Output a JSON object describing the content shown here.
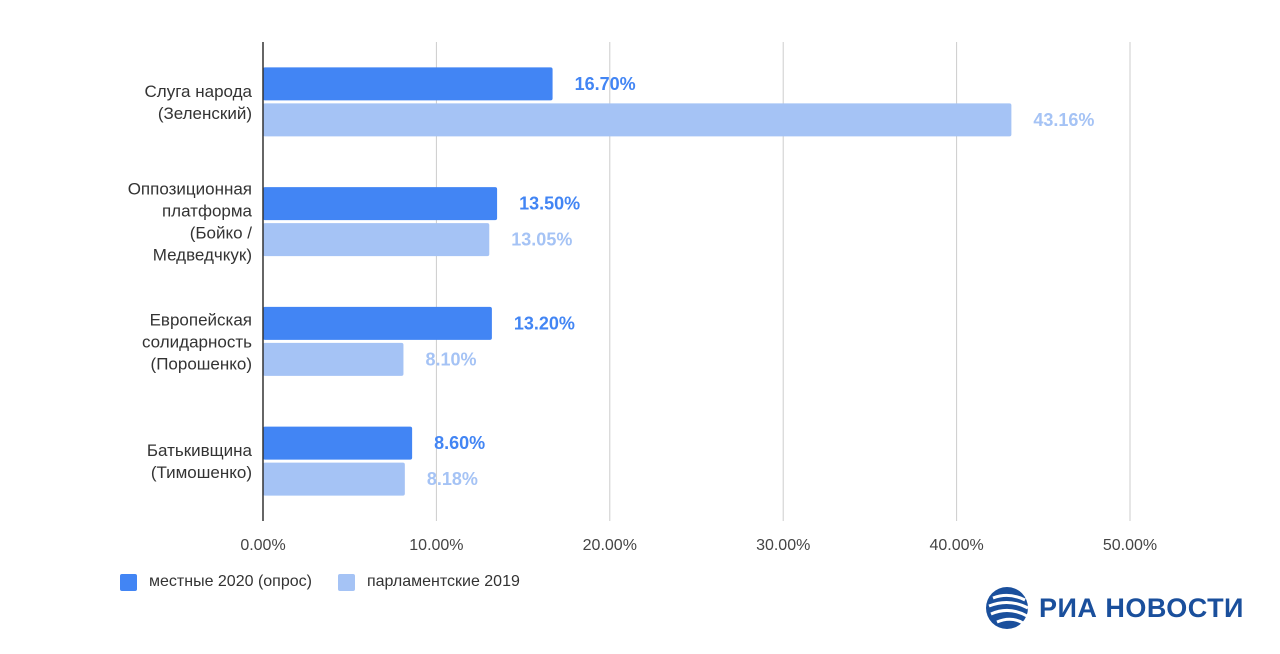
{
  "chart_data": {
    "type": "bar",
    "orientation": "horizontal",
    "categories": [
      [
        "Слуга народа",
        "(Зеленский)"
      ],
      [
        "Оппозиционная",
        "платформа",
        "(Бойко /",
        "Медведчкук)"
      ],
      [
        "Европейская",
        "солидарность",
        "(Порошенко)"
      ],
      [
        "Батькивщина",
        "(Тимошенко)"
      ]
    ],
    "series": [
      {
        "name": "местные 2020 (опрос)",
        "values": [
          16.7,
          13.5,
          13.2,
          8.6
        ],
        "labels": [
          "16.70%",
          "13.50%",
          "13.20%",
          "8.60%"
        ],
        "color": "#4285f4"
      },
      {
        "name": "парламентские 2019",
        "values": [
          43.16,
          13.05,
          8.1,
          8.18
        ],
        "labels": [
          "43.16%",
          "13.05%",
          "8.10%",
          "8.18%"
        ],
        "color": "#a5c3f5"
      }
    ],
    "xlim": [
      0,
      50
    ],
    "xticks": [
      "0.00%",
      "10.00%",
      "20.00%",
      "30.00%",
      "40.00%",
      "50.00%"
    ],
    "grid": true,
    "legend_position": "bottom-left"
  },
  "logo": {
    "text": "РИА НОВОСТИ",
    "color": "#1a4f9c"
  }
}
